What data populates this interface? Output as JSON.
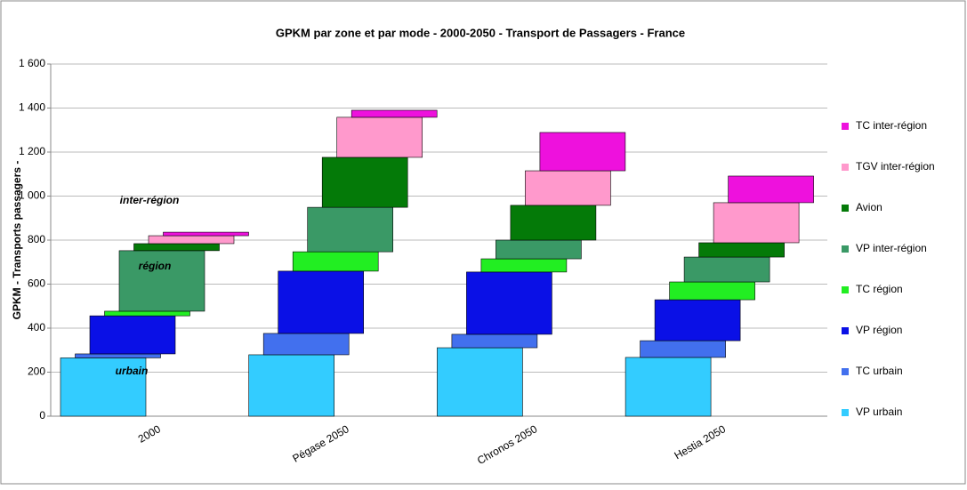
{
  "chart_data": {
    "type": "bar",
    "stacked": true,
    "title": "GPKM par zone et par mode - 2000-2050 - Transport de Passagers - France",
    "y_label": "GPKM - Transports passagers -",
    "categories": [
      "2000",
      "Pégase 2050",
      "Chronos 2050",
      "Hestia 2050"
    ],
    "series": [
      {
        "name": "VP urbain",
        "color": "#33ccff",
        "values": [
          265,
          279,
          311,
          267
        ]
      },
      {
        "name": "TC urbain",
        "color": "#4270ee",
        "values": [
          18,
          97,
          61,
          76
        ]
      },
      {
        "name": "VP région",
        "color": "#0a10e6",
        "values": [
          173,
          283,
          283,
          186
        ]
      },
      {
        "name": "TC région",
        "color": "#22ee22",
        "values": [
          21,
          88,
          60,
          81
        ]
      },
      {
        "name": "VP inter-région",
        "color": "#3a9966",
        "values": [
          275,
          202,
          85,
          113
        ]
      },
      {
        "name": "Avion",
        "color": "#047a08",
        "values": [
          32,
          227,
          158,
          65
        ]
      },
      {
        "name": "TGV inter-région",
        "color": "#ff99cc",
        "values": [
          36,
          182,
          157,
          182
        ]
      },
      {
        "name": "TC inter-région",
        "color": "#ee11dd",
        "values": [
          16,
          32,
          174,
          121
        ]
      }
    ],
    "annotations": [
      "inter-région",
      "région",
      "urbain"
    ],
    "ylim": [
      0,
      1600
    ],
    "yticks": [
      0,
      200,
      400,
      600,
      800,
      {
        "value": 1000,
        "label": "1 000"
      },
      {
        "value": 1200,
        "label": "1 200"
      },
      {
        "value": 1400,
        "label": "1 400"
      },
      {
        "value": 1600,
        "label": "1 600"
      }
    ],
    "grid": true,
    "legend": "right"
  }
}
